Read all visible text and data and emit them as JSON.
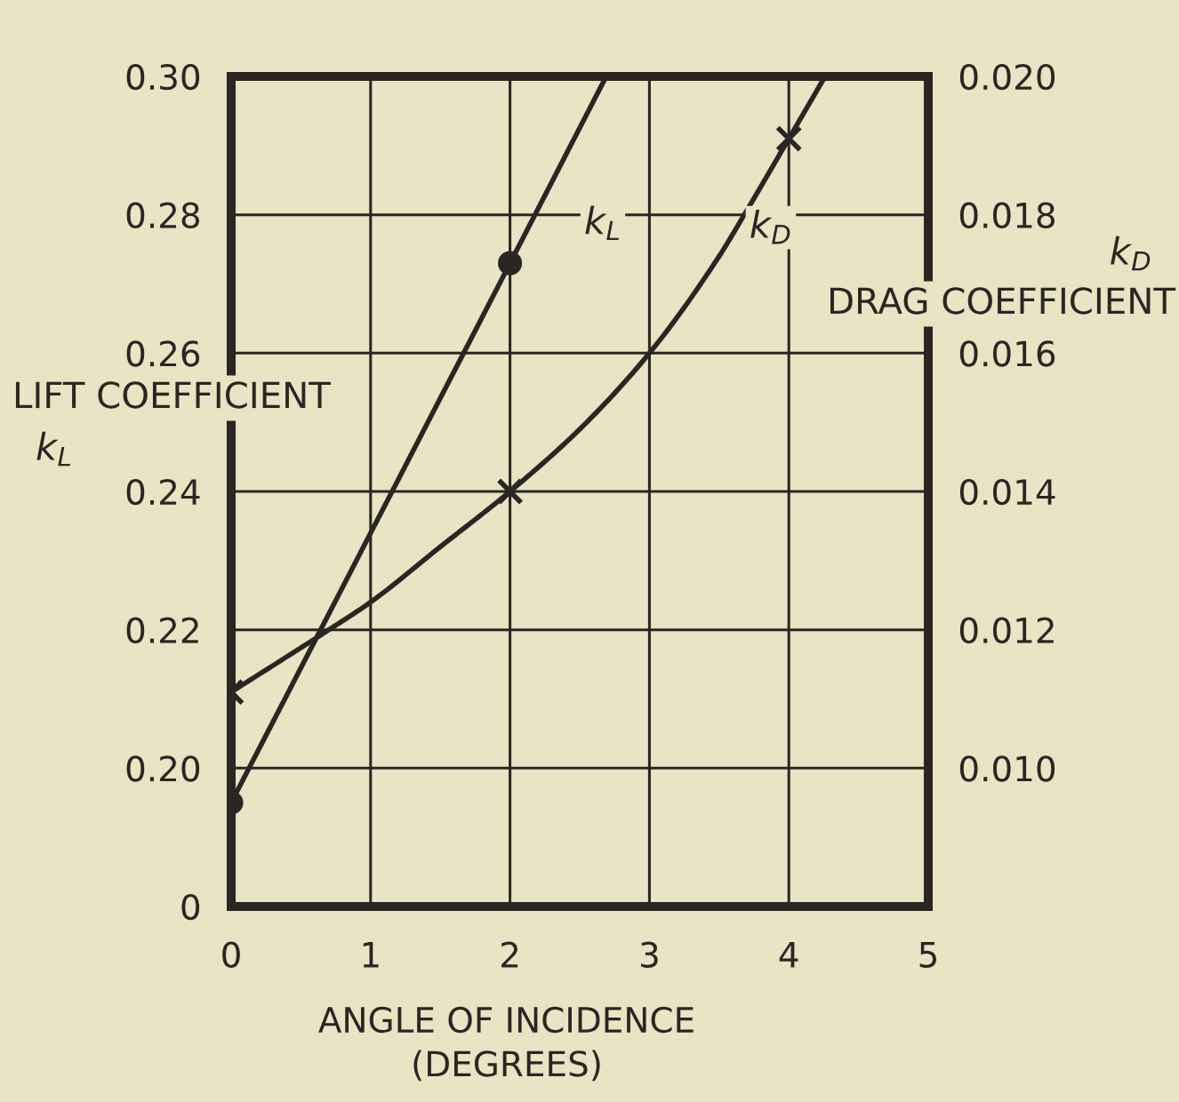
{
  "chart_data": {
    "type": "line",
    "xlabel": "ANGLE OF INCIDENCE\n(DEGREES)",
    "ylabel": "LIFT COEFFICIENT\nk$_{L}$",
    "y2label": "k$_{D}$\nDRAG COEFFICIENT",
    "xlim": [
      0,
      5
    ],
    "xticks": [
      0,
      1,
      2,
      3,
      4,
      5
    ],
    "ylim": [
      0.18,
      0.3
    ],
    "yticks": [
      {
        "value": 0.18,
        "label": "0"
      },
      {
        "value": 0.2,
        "label": "0.20"
      },
      {
        "value": 0.22,
        "label": "0.22"
      },
      {
        "value": 0.24,
        "label": "0.24"
      },
      {
        "value": 0.26,
        "label": "0.26"
      },
      {
        "value": 0.28,
        "label": "0.28"
      },
      {
        "value": 0.3,
        "label": "0.30"
      }
    ],
    "y2lim": [
      0.008,
      0.02
    ],
    "y2ticks": [
      {
        "value": 0.008,
        "label": null
      },
      {
        "value": 0.01,
        "label": "0.010"
      },
      {
        "value": 0.012,
        "label": "0.012"
      },
      {
        "value": 0.014,
        "label": "0.014"
      },
      {
        "value": 0.016,
        "label": "0.016"
      },
      {
        "value": 0.018,
        "label": "0.018"
      },
      {
        "value": 0.02,
        "label": "0.020"
      }
    ],
    "grid": true,
    "series": [
      {
        "name": "k$_{L}$",
        "color": "#2b2623",
        "x": [
          0,
          2,
          2.69
        ],
        "values": [
          0.195,
          0.273,
          0.3
        ],
        "marker": "none",
        "line_style": "solid"
      },
      {
        "type": "scatter",
        "color": "#2b2623",
        "x": [
          0,
          2
        ],
        "values": [
          0.195,
          0.273
        ],
        "marker": "circle"
      },
      {
        "name": "k$_{D}$",
        "axis": "y2",
        "color": "#2b2623",
        "x": [
          0,
          0.7,
          1,
          1.5,
          2,
          2.5,
          3,
          3.5,
          3.68,
          4,
          4.26
        ],
        "values": [
          0.0111,
          0.012,
          0.0124,
          0.0132,
          0.014,
          0.0149,
          0.016,
          0.0174,
          0.018,
          0.0191,
          0.02
        ],
        "marker": "none",
        "line_style": "solid"
      },
      {
        "type": "scatter",
        "axis": "y2",
        "color": "#2b2623",
        "x": [
          0,
          2,
          4
        ],
        "values": [
          0.0111,
          0.014,
          0.0191
        ],
        "marker": "cross"
      }
    ]
  }
}
